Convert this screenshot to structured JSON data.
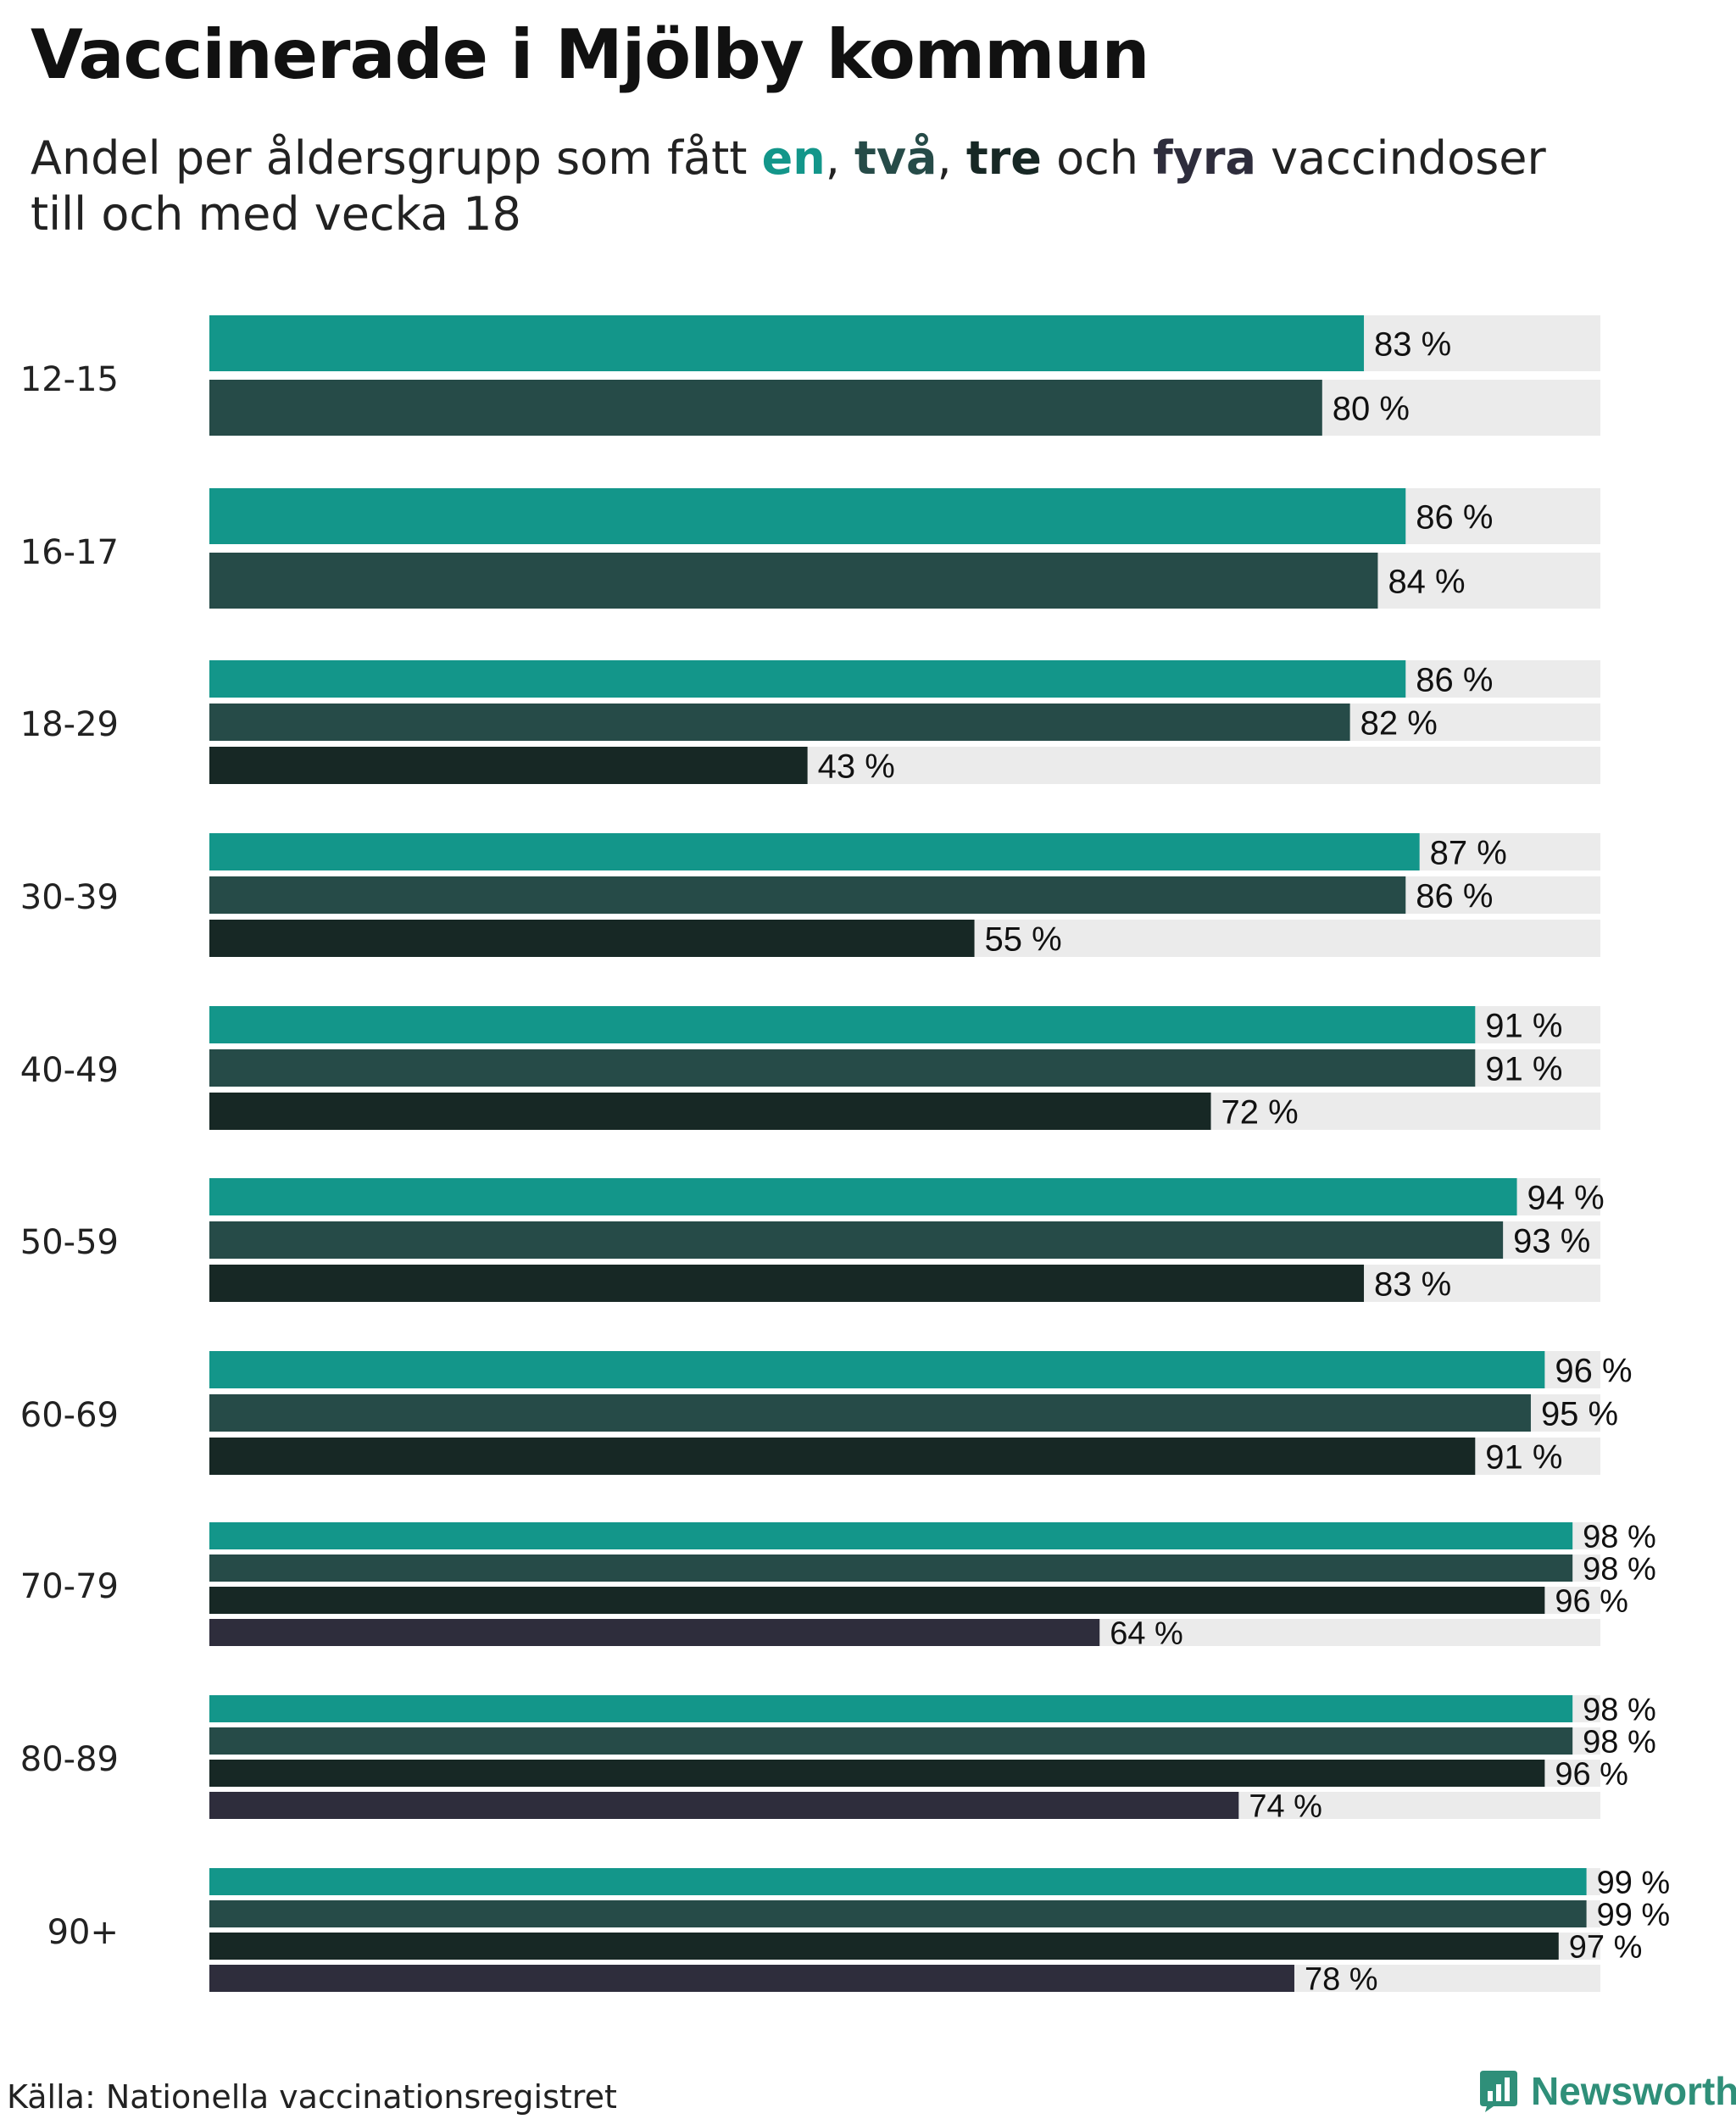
{
  "title": "Vaccinerade i Mjölby kommun",
  "subtitle": {
    "prefix": "Andel per åldersgrupp som fått ",
    "w1": "en",
    "sep1": ", ",
    "w2": "två",
    "sep2": ", ",
    "w3": "tre",
    "mid": " och ",
    "w4": "fyra",
    "suffix": " vaccindoser",
    "line2": "till och med vecka 18"
  },
  "colors": {
    "en": "#13968a",
    "tva": "#264b48",
    "tre": "#172825",
    "fyra": "#2e2d3c",
    "track": "#ebebeb"
  },
  "chart_data": {
    "type": "bar",
    "orientation": "horizontal",
    "title": "Vaccinerade i Mjölby kommun",
    "subtitle": "Andel per åldersgrupp som fått en, två, tre och fyra vaccindoser till och med vecka 18",
    "xlim": [
      0,
      100
    ],
    "value_suffix": " %",
    "series_names": [
      "en",
      "två",
      "tre",
      "fyra"
    ],
    "groups": [
      {
        "label": "12-15",
        "values": [
          83,
          80
        ]
      },
      {
        "label": "16-17",
        "values": [
          86,
          84
        ]
      },
      {
        "label": "18-29",
        "values": [
          86,
          82,
          43
        ]
      },
      {
        "label": "30-39",
        "values": [
          87,
          86,
          55
        ]
      },
      {
        "label": "40-49",
        "values": [
          91,
          91,
          72
        ]
      },
      {
        "label": "50-59",
        "values": [
          94,
          93,
          83
        ]
      },
      {
        "label": "60-69",
        "values": [
          96,
          95,
          91
        ]
      },
      {
        "label": "70-79",
        "values": [
          98,
          98,
          96,
          64
        ]
      },
      {
        "label": "80-89",
        "values": [
          98,
          98,
          96,
          74
        ]
      },
      {
        "label": "90+",
        "values": [
          99,
          99,
          97,
          78
        ]
      }
    ]
  },
  "source": "Källa: Nationella vaccinationsregistret",
  "brand": "Newsworthy"
}
